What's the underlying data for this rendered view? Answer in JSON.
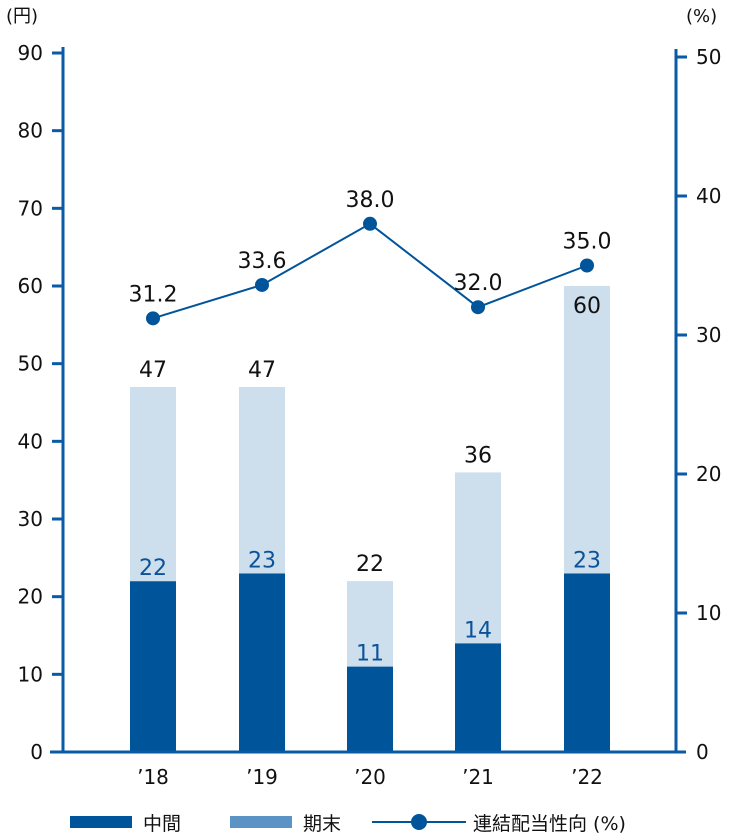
{
  "chart_data": {
    "type": "bar",
    "stacked": true,
    "categories": [
      "’18",
      "’19",
      "’20",
      "’21",
      "’22"
    ],
    "series": [
      {
        "name": "中間",
        "values": [
          22,
          23,
          11,
          14,
          23
        ],
        "color": "#00549a"
      },
      {
        "name": "期末",
        "values": [
          25,
          24,
          11,
          22,
          37
        ],
        "color": "#cddeed"
      }
    ],
    "totals": [
      47,
      47,
      22,
      36,
      60
    ],
    "line_series": {
      "name": "連結配当性向（%）",
      "values": [
        31.2,
        33.6,
        38.0,
        32.0,
        35.0
      ],
      "labels": [
        "31.2",
        "33.6",
        "38.0",
        "32.0",
        "35.0"
      ],
      "color": "#00549a",
      "axis": "right"
    },
    "left_axis": {
      "unit": "(円)",
      "ylim": [
        0,
        90
      ],
      "ticks": [
        "0",
        "10",
        "20",
        "30",
        "40",
        "50",
        "60",
        "70",
        "80",
        "90"
      ]
    },
    "right_axis": {
      "unit": "(%)",
      "ylim": [
        0,
        50
      ],
      "ticks": [
        "0",
        "10",
        "20",
        "30",
        "40",
        "50"
      ]
    },
    "legend": {
      "position": "bottom",
      "items": [
        {
          "label": "中間",
          "type": "bar",
          "color": "#00549a"
        },
        {
          "label": "期末",
          "type": "bar",
          "color": "#5a93c4"
        },
        {
          "label": "連結配当性向 (%)",
          "type": "line-marker",
          "color": "#00549a"
        }
      ]
    },
    "axis_color": "#0a5aa5",
    "grid": false
  }
}
